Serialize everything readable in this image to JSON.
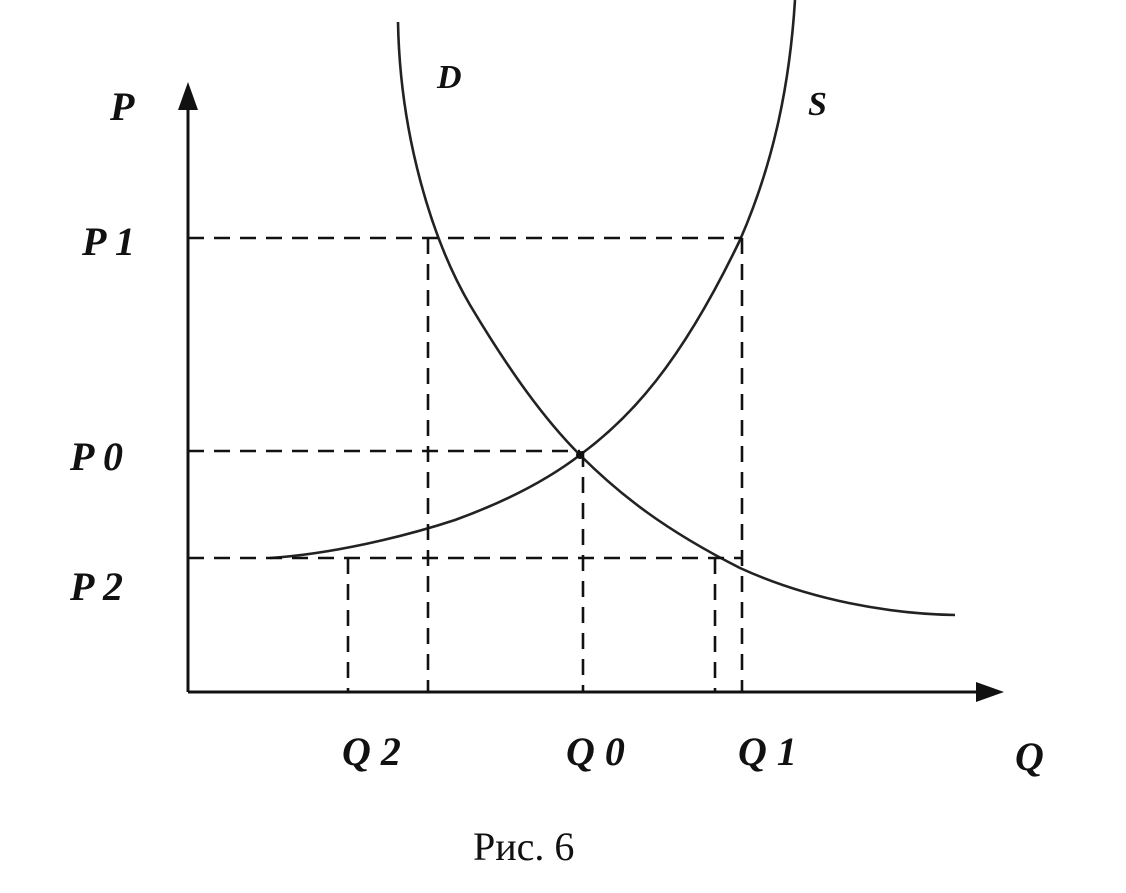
{
  "figure": {
    "axes": {
      "y_label": "P",
      "x_label": "Q"
    },
    "price_labels": {
      "p1": "P 1",
      "p0": "P 0",
      "p2": "P 2"
    },
    "quantity_labels": {
      "q2": "Q 2",
      "q0": "Q 0",
      "q1": "Q 1"
    },
    "curves": {
      "demand": "D",
      "supply": "S"
    },
    "caption": "Рис. 6"
  }
}
